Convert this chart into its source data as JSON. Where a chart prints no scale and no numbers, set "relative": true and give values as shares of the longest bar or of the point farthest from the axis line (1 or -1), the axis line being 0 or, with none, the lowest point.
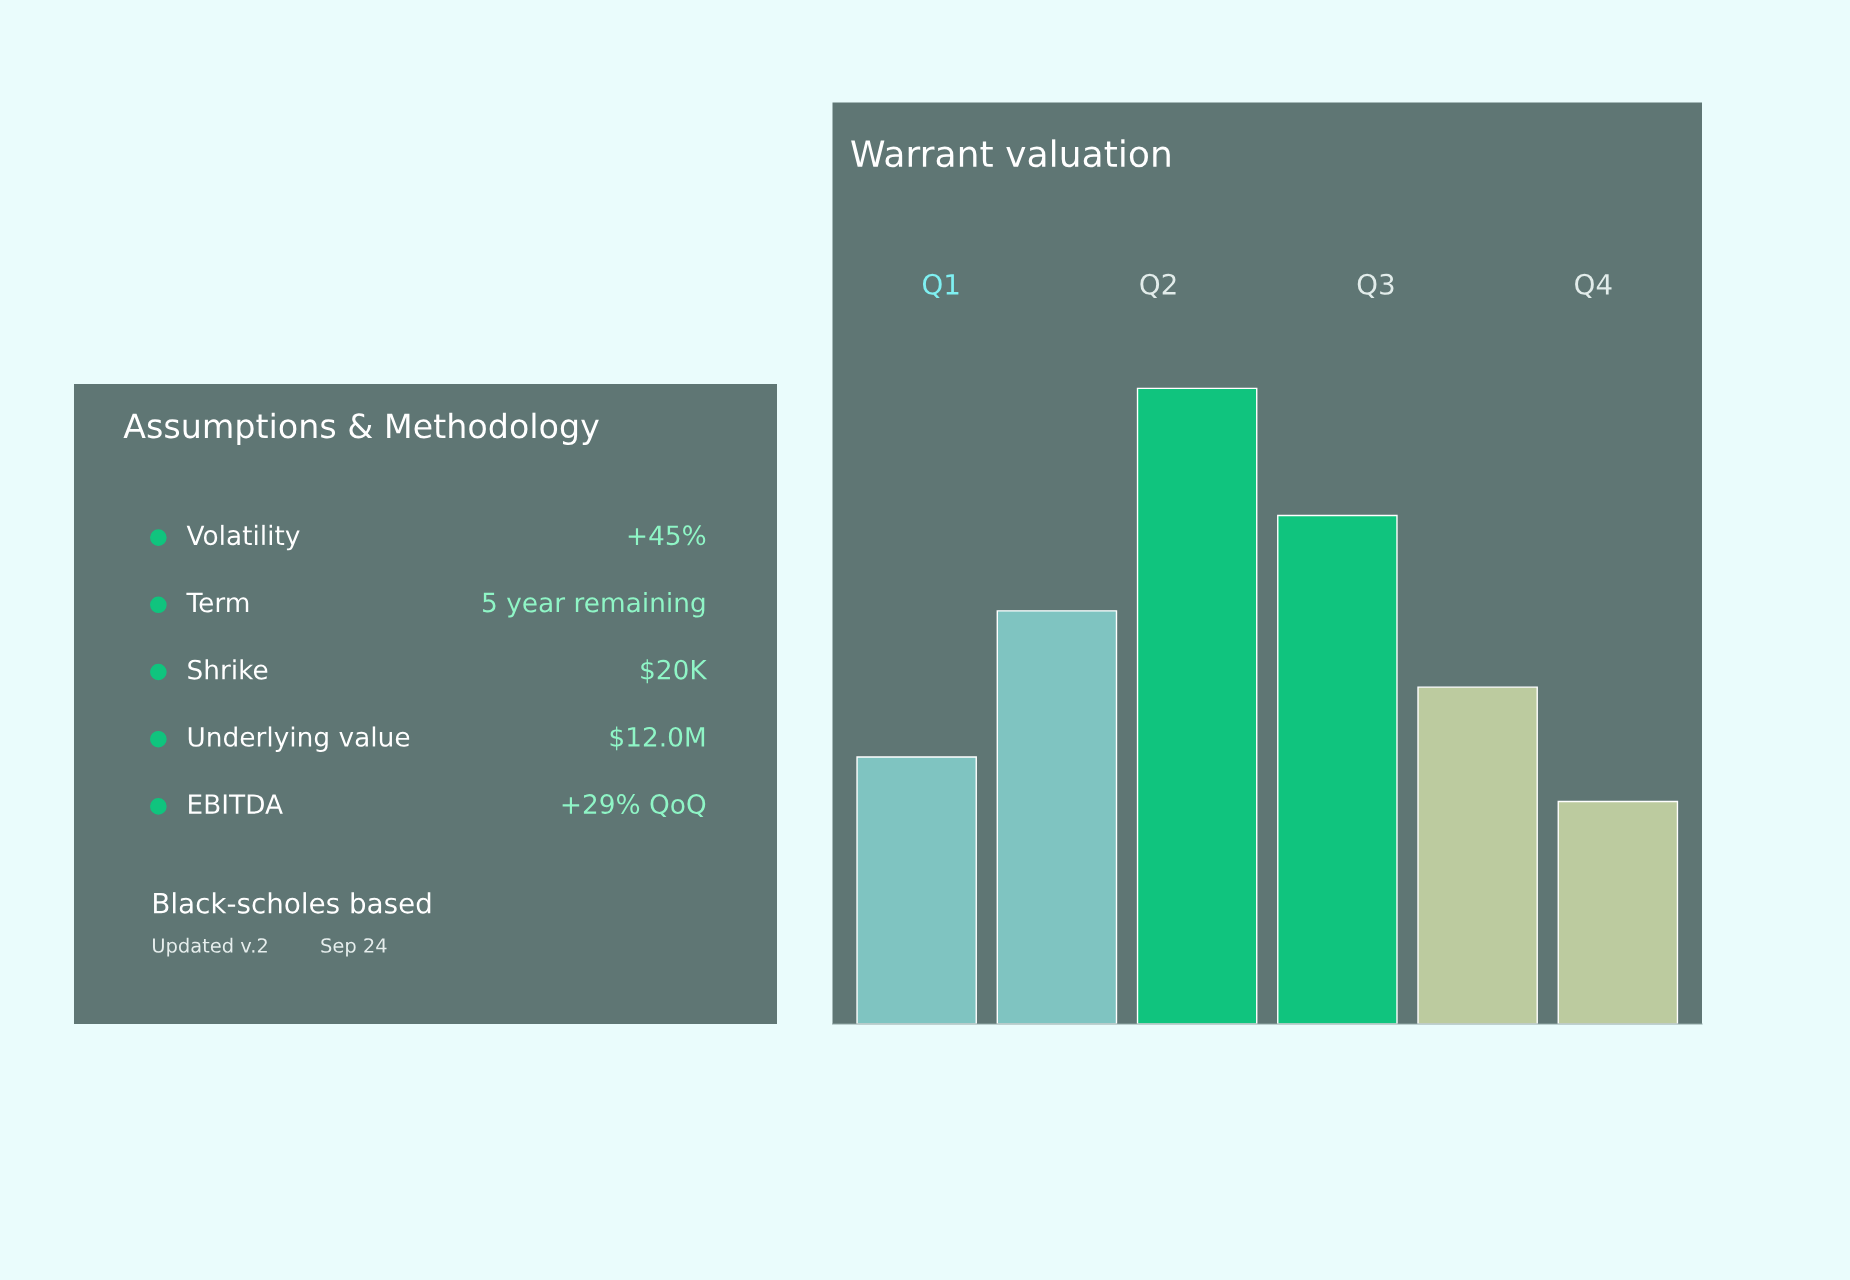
{
  "chart_data": [
    {
      "type": "bar",
      "title": "Warrant valuation",
      "relative": true,
      "categories": [
        null,
        null,
        null,
        null,
        null,
        null
      ],
      "values": [
        0.42,
        0.65,
        1,
        0.8,
        0.53,
        0.35
      ],
      "colors": [
        "#7fc4c1",
        "#7fc4c1",
        "#10c47e",
        "#10c47e",
        "#bccb9f",
        "#bccb9f"
      ],
      "annotations": [
        "Q1",
        "Q2",
        "Q3",
        "Q4"
      ]
    },
    {
      "type": "other",
      "title": "Assumptions & Methodology",
      "annotations": [
        "Volatility",
        "+45%",
        "Term",
        "5 year remaining",
        "Shrike",
        "$20K",
        "Underlying value",
        "$12.0M",
        "EBITDA",
        "+29% QoQ",
        "Black-scholes based",
        "Updated v.2",
        "Sep 24"
      ]
    }
  ]
}
